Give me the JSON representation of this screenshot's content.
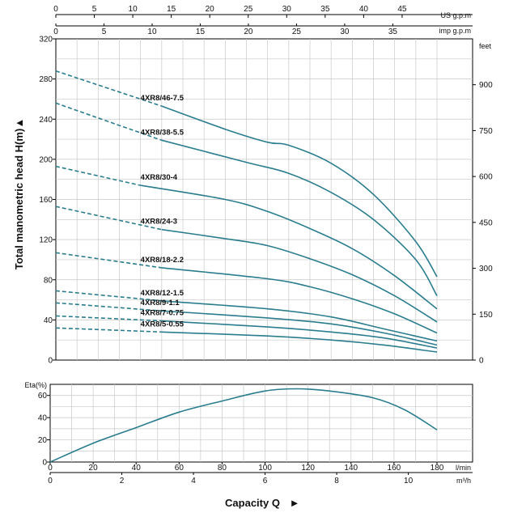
{
  "colors": {
    "curve": "#2a7d8e",
    "axis": "#000000",
    "grid": "#c8c8c8",
    "text": "#111111"
  },
  "chart_data": [
    {
      "type": "line",
      "name": "head-curves",
      "ylabel": "Total manometric head H(m)",
      "ylabel_arrow": "▲",
      "ylim": [
        0,
        320
      ],
      "y_ticks": [
        0,
        40,
        80,
        120,
        160,
        200,
        240,
        280,
        320
      ],
      "xlim": [
        0,
        180
      ],
      "x_unit_main": "l/min",
      "secondary_axes": {
        "top_us": {
          "unit": "US g.p.m",
          "ticks": [
            0,
            5,
            10,
            15,
            20,
            25,
            30,
            35,
            40,
            45
          ],
          "lim": [
            0,
            49.53
          ]
        },
        "top_imp": {
          "unit": "imp g.p.m",
          "ticks": [
            0,
            5,
            10,
            15,
            20,
            25,
            30,
            35
          ],
          "lim": [
            0,
            39.59
          ]
        },
        "right_feet": {
          "unit": "feet",
          "ticks": [
            0,
            150,
            300,
            450,
            600,
            750,
            900
          ],
          "lim": [
            0,
            1049.9
          ]
        }
      },
      "grid": true,
      "series": [
        {
          "name": "4XR8/46-7.5",
          "dashed": [
            [
              0,
              288
            ],
            [
              50,
              253
            ]
          ],
          "solid": [
            [
              50,
              253
            ],
            [
              80,
              230
            ],
            [
              100,
              217
            ],
            [
              110,
              214
            ],
            [
              130,
              196
            ],
            [
              150,
              165
            ],
            [
              170,
              118
            ],
            [
              180,
              83
            ]
          ]
        },
        {
          "name": "4XR8/38-5.5",
          "dashed": [
            [
              0,
              256
            ],
            [
              50,
              219
            ]
          ],
          "solid": [
            [
              50,
              219
            ],
            [
              90,
              197
            ],
            [
              110,
              186
            ],
            [
              130,
              167
            ],
            [
              150,
              140
            ],
            [
              170,
              100
            ],
            [
              180,
              64
            ]
          ]
        },
        {
          "name": "4XR8/30-4",
          "dashed": [
            [
              0,
              193
            ],
            [
              40,
              174
            ]
          ],
          "solid": [
            [
              40,
              174
            ],
            [
              80,
              160
            ],
            [
              100,
              148
            ],
            [
              120,
              131
            ],
            [
              140,
              111
            ],
            [
              160,
              84
            ],
            [
              180,
              51
            ]
          ]
        },
        {
          "name": "4XR8/24-3",
          "dashed": [
            [
              0,
              153
            ],
            [
              50,
              130
            ]
          ],
          "solid": [
            [
              50,
              130
            ],
            [
              80,
              121
            ],
            [
              100,
              114
            ],
            [
              120,
              101
            ],
            [
              140,
              85
            ],
            [
              160,
              64
            ],
            [
              180,
              38
            ]
          ]
        },
        {
          "name": "4XR8/18-2.2",
          "dashed": [
            [
              0,
              107
            ],
            [
              50,
              92
            ]
          ],
          "solid": [
            [
              50,
              92
            ],
            [
              100,
              81
            ],
            [
              120,
              73
            ],
            [
              140,
              61
            ],
            [
              160,
              46
            ],
            [
              180,
              27
            ]
          ]
        },
        {
          "name": "4XR8/12-1.5",
          "dashed": [
            [
              0,
              69
            ],
            [
              50,
              59
            ]
          ],
          "solid": [
            [
              50,
              59
            ],
            [
              100,
              51
            ],
            [
              130,
              43
            ],
            [
              155,
              31
            ],
            [
              180,
              19
            ]
          ]
        },
        {
          "name": "4XR8/9-1.1",
          "dashed": [
            [
              0,
              57
            ],
            [
              50,
              49
            ]
          ],
          "solid": [
            [
              50,
              49
            ],
            [
              100,
              42
            ],
            [
              130,
              36
            ],
            [
              155,
              27
            ],
            [
              180,
              15
            ]
          ]
        },
        {
          "name": "4XR8/7-0.75",
          "dashed": [
            [
              0,
              44
            ],
            [
              50,
              39
            ]
          ],
          "solid": [
            [
              50,
              39
            ],
            [
              100,
              33
            ],
            [
              130,
              28
            ],
            [
              155,
              22
            ],
            [
              180,
              12
            ]
          ]
        },
        {
          "name": "4XR8/5-0.55",
          "dashed": [
            [
              0,
              32
            ],
            [
              50,
              28
            ]
          ],
          "solid": [
            [
              50,
              28
            ],
            [
              100,
              24
            ],
            [
              130,
              20
            ],
            [
              155,
              15
            ],
            [
              180,
              8
            ]
          ]
        }
      ]
    },
    {
      "type": "line",
      "name": "efficiency-curve",
      "ylabel": "Eta(%)",
      "ylim": [
        0,
        70
      ],
      "y_ticks": [
        0,
        20,
        40,
        60
      ],
      "xlim": [
        0,
        180
      ],
      "x_ticks": [
        0,
        20,
        40,
        60,
        80,
        100,
        120,
        140,
        160,
        180
      ],
      "x_unit": "l/min",
      "x2_ticks": [
        0,
        2,
        4,
        6,
        8,
        10
      ],
      "x2_unit": "m³/h",
      "x2_lim": [
        0,
        10.8
      ],
      "grid": true,
      "series": [
        {
          "name": "",
          "values": [
            [
              0,
              0
            ],
            [
              20,
              17
            ],
            [
              40,
              31
            ],
            [
              60,
              45
            ],
            [
              80,
              55
            ],
            [
              100,
              64
            ],
            [
              115,
              66
            ],
            [
              130,
              64
            ],
            [
              150,
              58
            ],
            [
              165,
              47
            ],
            [
              180,
              29
            ]
          ]
        }
      ]
    }
  ],
  "xlabel_bottom": "Capacity Q",
  "xlabel_arrow": "►"
}
